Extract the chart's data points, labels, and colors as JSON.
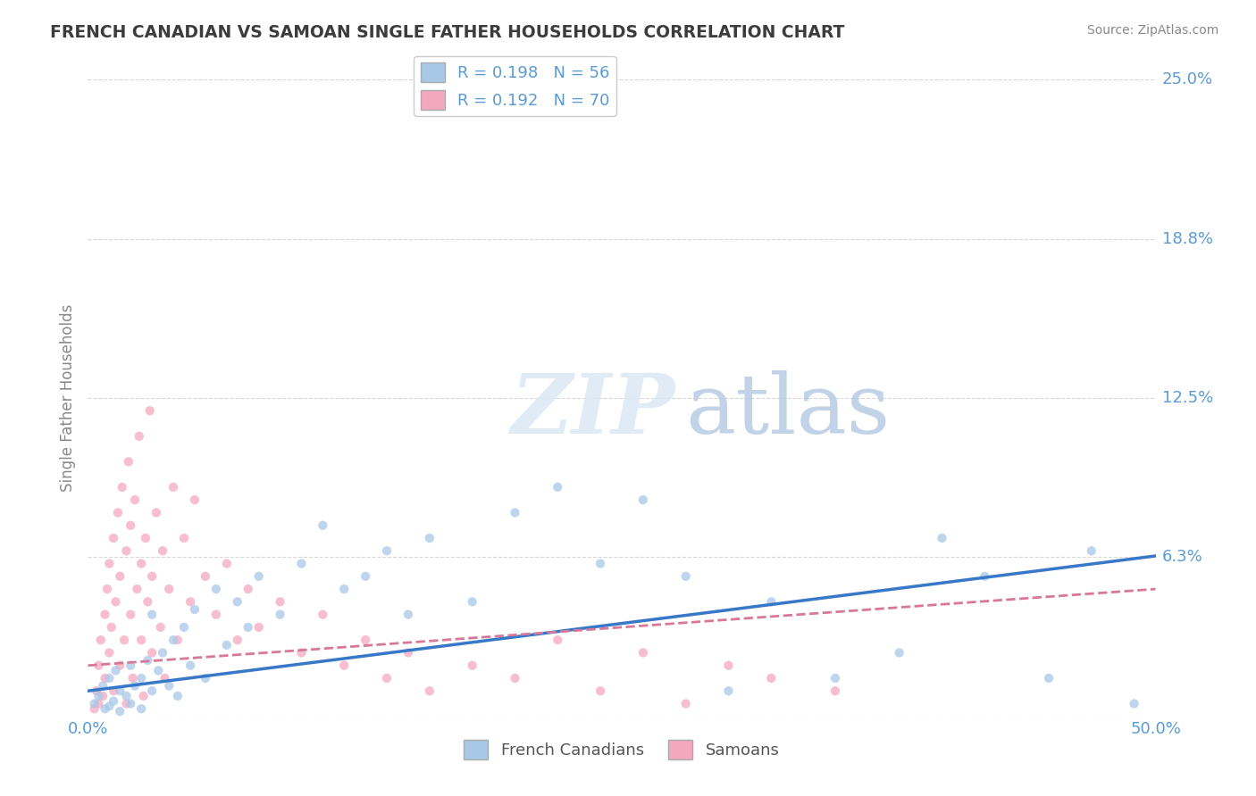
{
  "title": "FRENCH CANADIAN VS SAMOAN SINGLE FATHER HOUSEHOLDS CORRELATION CHART",
  "source": "Source: ZipAtlas.com",
  "ylabel": "Single Father Households",
  "xlabel": "",
  "xlim": [
    0.0,
    0.5
  ],
  "ylim": [
    0.0,
    0.25
  ],
  "yticks": [
    0.0,
    0.0625,
    0.125,
    0.1875,
    0.25
  ],
  "ytick_labels": [
    "0.0%",
    "6.3%",
    "12.5%",
    "18.8%",
    "25.0%"
  ],
  "xticks": [
    0.0,
    0.5
  ],
  "xtick_labels": [
    "0.0%",
    "50.0%"
  ],
  "blue_r": 0.198,
  "blue_n": 56,
  "pink_r": 0.192,
  "pink_n": 70,
  "title_color": "#3c3c3c",
  "tick_color": "#5b9bd5",
  "grid_color": "#c8c8c8",
  "blue_color": "#a8c8e8",
  "pink_color": "#f4a8be",
  "blue_line_color": "#3878c8",
  "pink_line_color": "#d87898",
  "legend_text_color": "#5b9bd5",
  "blue_scatter": [
    [
      0.003,
      0.005
    ],
    [
      0.005,
      0.008
    ],
    [
      0.007,
      0.012
    ],
    [
      0.008,
      0.003
    ],
    [
      0.01,
      0.015
    ],
    [
      0.01,
      0.004
    ],
    [
      0.012,
      0.006
    ],
    [
      0.013,
      0.018
    ],
    [
      0.015,
      0.01
    ],
    [
      0.015,
      0.002
    ],
    [
      0.018,
      0.008
    ],
    [
      0.02,
      0.02
    ],
    [
      0.02,
      0.005
    ],
    [
      0.022,
      0.012
    ],
    [
      0.025,
      0.015
    ],
    [
      0.025,
      0.003
    ],
    [
      0.028,
      0.022
    ],
    [
      0.03,
      0.01
    ],
    [
      0.03,
      0.04
    ],
    [
      0.033,
      0.018
    ],
    [
      0.035,
      0.025
    ],
    [
      0.038,
      0.012
    ],
    [
      0.04,
      0.03
    ],
    [
      0.042,
      0.008
    ],
    [
      0.045,
      0.035
    ],
    [
      0.048,
      0.02
    ],
    [
      0.05,
      0.042
    ],
    [
      0.055,
      0.015
    ],
    [
      0.06,
      0.05
    ],
    [
      0.065,
      0.028
    ],
    [
      0.07,
      0.045
    ],
    [
      0.075,
      0.035
    ],
    [
      0.08,
      0.055
    ],
    [
      0.09,
      0.04
    ],
    [
      0.1,
      0.06
    ],
    [
      0.11,
      0.075
    ],
    [
      0.12,
      0.05
    ],
    [
      0.13,
      0.055
    ],
    [
      0.14,
      0.065
    ],
    [
      0.15,
      0.04
    ],
    [
      0.16,
      0.07
    ],
    [
      0.18,
      0.045
    ],
    [
      0.2,
      0.08
    ],
    [
      0.22,
      0.09
    ],
    [
      0.24,
      0.06
    ],
    [
      0.26,
      0.085
    ],
    [
      0.28,
      0.055
    ],
    [
      0.3,
      0.01
    ],
    [
      0.32,
      0.045
    ],
    [
      0.35,
      0.015
    ],
    [
      0.38,
      0.025
    ],
    [
      0.4,
      0.07
    ],
    [
      0.42,
      0.055
    ],
    [
      0.45,
      0.015
    ],
    [
      0.47,
      0.065
    ],
    [
      0.49,
      0.005
    ]
  ],
  "pink_scatter": [
    [
      0.003,
      0.003
    ],
    [
      0.004,
      0.01
    ],
    [
      0.005,
      0.02
    ],
    [
      0.005,
      0.005
    ],
    [
      0.006,
      0.03
    ],
    [
      0.007,
      0.008
    ],
    [
      0.008,
      0.04
    ],
    [
      0.008,
      0.015
    ],
    [
      0.009,
      0.05
    ],
    [
      0.01,
      0.025
    ],
    [
      0.01,
      0.06
    ],
    [
      0.011,
      0.035
    ],
    [
      0.012,
      0.07
    ],
    [
      0.012,
      0.01
    ],
    [
      0.013,
      0.045
    ],
    [
      0.014,
      0.08
    ],
    [
      0.015,
      0.02
    ],
    [
      0.015,
      0.055
    ],
    [
      0.016,
      0.09
    ],
    [
      0.017,
      0.03
    ],
    [
      0.018,
      0.065
    ],
    [
      0.018,
      0.005
    ],
    [
      0.019,
      0.1
    ],
    [
      0.02,
      0.04
    ],
    [
      0.02,
      0.075
    ],
    [
      0.021,
      0.015
    ],
    [
      0.022,
      0.085
    ],
    [
      0.023,
      0.05
    ],
    [
      0.024,
      0.11
    ],
    [
      0.025,
      0.03
    ],
    [
      0.025,
      0.06
    ],
    [
      0.026,
      0.008
    ],
    [
      0.027,
      0.07
    ],
    [
      0.028,
      0.045
    ],
    [
      0.029,
      0.12
    ],
    [
      0.03,
      0.025
    ],
    [
      0.03,
      0.055
    ],
    [
      0.032,
      0.08
    ],
    [
      0.034,
      0.035
    ],
    [
      0.035,
      0.065
    ],
    [
      0.036,
      0.015
    ],
    [
      0.038,
      0.05
    ],
    [
      0.04,
      0.09
    ],
    [
      0.042,
      0.03
    ],
    [
      0.045,
      0.07
    ],
    [
      0.048,
      0.045
    ],
    [
      0.05,
      0.085
    ],
    [
      0.055,
      0.055
    ],
    [
      0.06,
      0.04
    ],
    [
      0.065,
      0.06
    ],
    [
      0.07,
      0.03
    ],
    [
      0.075,
      0.05
    ],
    [
      0.08,
      0.035
    ],
    [
      0.09,
      0.045
    ],
    [
      0.1,
      0.025
    ],
    [
      0.11,
      0.04
    ],
    [
      0.12,
      0.02
    ],
    [
      0.13,
      0.03
    ],
    [
      0.14,
      0.015
    ],
    [
      0.15,
      0.025
    ],
    [
      0.16,
      0.01
    ],
    [
      0.18,
      0.02
    ],
    [
      0.2,
      0.015
    ],
    [
      0.22,
      0.03
    ],
    [
      0.24,
      0.01
    ],
    [
      0.26,
      0.025
    ],
    [
      0.28,
      0.005
    ],
    [
      0.3,
      0.02
    ],
    [
      0.32,
      0.015
    ],
    [
      0.35,
      0.01
    ]
  ],
  "blue_trendline": [
    0.0,
    0.5,
    0.01,
    0.063
  ],
  "pink_trendline": [
    0.0,
    0.5,
    0.02,
    0.05
  ]
}
